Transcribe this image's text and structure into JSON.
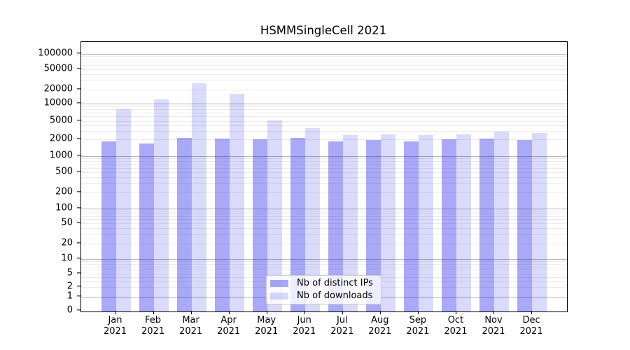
{
  "chart_data": {
    "type": "bar",
    "title": "HSMMSingleCell 2021",
    "year_label": "2021",
    "categories": [
      "Jan",
      "Feb",
      "Mar",
      "Apr",
      "May",
      "Jun",
      "Jul",
      "Aug",
      "Sep",
      "Oct",
      "Nov",
      "Dec"
    ],
    "series": [
      {
        "name": "Nb of distinct IPs",
        "color": "#0a0aeb",
        "alpha": 0.35,
        "solid_equivalent": "#a9a9f8",
        "values": [
          1850,
          1700,
          2150,
          2050,
          2000,
          2150,
          1850,
          1950,
          1850,
          2000,
          2100,
          1950
        ]
      },
      {
        "name": "Nb of downloads",
        "color": "#0a0ae6",
        "alpha": 0.15,
        "solid_equivalent": "#dadafb",
        "values": [
          8000,
          12500,
          27000,
          16000,
          5100,
          3500,
          2500,
          2600,
          2500,
          2550,
          2900,
          2750
        ]
      }
    ],
    "yscale": "symlog",
    "yticks": [
      0,
      1,
      2,
      5,
      10,
      20,
      50,
      100,
      200,
      500,
      1000,
      2000,
      5000,
      10000,
      20000,
      50000,
      100000
    ],
    "ylim": [
      0,
      150000
    ],
    "grid": "both",
    "legend_position": "lower-center",
    "axis_color": "#000000",
    "major_grid_color": "#b3b3b3",
    "minor_grid_color": "#ebebeb"
  }
}
